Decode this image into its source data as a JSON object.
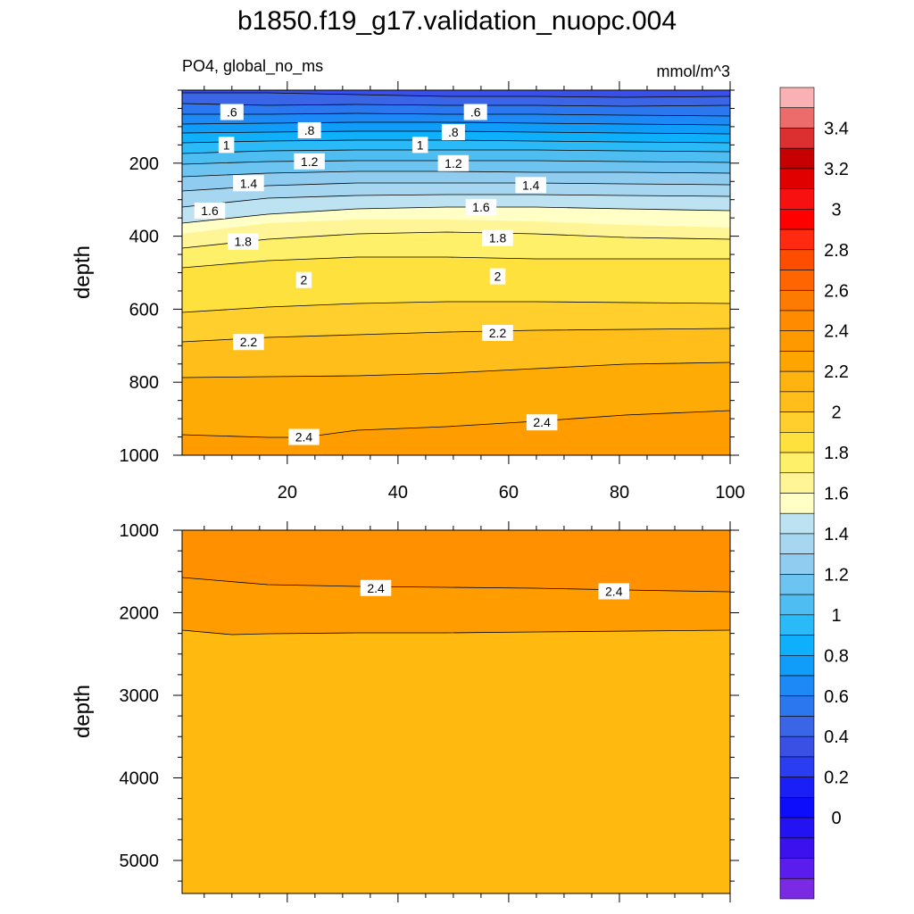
{
  "title": "b1850.f19_g17.validation_nuopc.004",
  "subtitle_left": "PO4, global_no_ms",
  "units": "mmol/m^3",
  "chart_data": [
    {
      "type": "contour",
      "panel": "upper",
      "xlabel": "",
      "ylabel": "depth",
      "xlim": [
        1,
        100
      ],
      "ylim": [
        0,
        1000
      ],
      "x_ticks": [
        20,
        40,
        60,
        80,
        100
      ],
      "y_ticks": [
        200,
        400,
        600,
        800,
        1000
      ],
      "contour_levels_labeled": [
        0.6,
        0.8,
        1.0,
        1.2,
        1.4,
        1.6,
        1.8,
        2.0,
        2.2,
        2.4
      ],
      "contour_labels": [
        {
          "x": 10,
          "y": 60,
          "text": ".6"
        },
        {
          "x": 54,
          "y": 60,
          "text": ".6"
        },
        {
          "x": 24,
          "y": 110,
          "text": ".8"
        },
        {
          "x": 50,
          "y": 115,
          "text": ".8"
        },
        {
          "x": 9,
          "y": 150,
          "text": "1"
        },
        {
          "x": 44,
          "y": 150,
          "text": "1"
        },
        {
          "x": 24,
          "y": 195,
          "text": "1.2"
        },
        {
          "x": 50,
          "y": 200,
          "text": "1.2"
        },
        {
          "x": 13,
          "y": 255,
          "text": "1.4"
        },
        {
          "x": 64,
          "y": 260,
          "text": "1.4"
        },
        {
          "x": 6,
          "y": 330,
          "text": "1.6"
        },
        {
          "x": 55,
          "y": 320,
          "text": "1.6"
        },
        {
          "x": 12,
          "y": 415,
          "text": "1.8"
        },
        {
          "x": 58,
          "y": 405,
          "text": "1.8"
        },
        {
          "x": 23,
          "y": 520,
          "text": "2"
        },
        {
          "x": 58,
          "y": 510,
          "text": "2"
        },
        {
          "x": 13,
          "y": 690,
          "text": "2.2"
        },
        {
          "x": 58,
          "y": 665,
          "text": "2.2"
        },
        {
          "x": 23,
          "y": 950,
          "text": "2.4"
        },
        {
          "x": 66,
          "y": 910,
          "text": "2.4"
        }
      ]
    },
    {
      "type": "contour",
      "panel": "lower",
      "xlabel": "",
      "ylabel": "depth",
      "xlim": [
        1,
        100
      ],
      "ylim": [
        1000,
        5400
      ],
      "y_ticks": [
        1000,
        2000,
        3000,
        4000,
        5000
      ],
      "contour_labels": [
        {
          "x": 36,
          "y": 1700,
          "text": "2.4"
        },
        {
          "x": 79,
          "y": 1740,
          "text": "2.4"
        }
      ]
    }
  ],
  "colorbar": {
    "labels": [
      "3.4",
      "3.2",
      "3",
      "2.8",
      "2.6",
      "2.4",
      "2.2",
      "2",
      "1.8",
      "1.6",
      "1.4",
      "1.2",
      "1",
      "0.8",
      "0.6",
      "0.4",
      "0.2",
      "0"
    ],
    "colors_top_to_bottom": [
      "#f9b1b4",
      "#ec6c6c",
      "#dc3030",
      "#c60000",
      "#e00000",
      "#f71010",
      "#ff0000",
      "#ff2a10",
      "#ff4d00",
      "#ff6500",
      "#ff7a00",
      "#ff8c00",
      "#ff9900",
      "#ffa500",
      "#ffb30e",
      "#ffbe1a",
      "#ffd02d",
      "#ffe13e",
      "#fff06a",
      "#fff596",
      "#ffffc6",
      "#bde3f3",
      "#a7d6f1",
      "#8fccef",
      "#6ec4f0",
      "#4ebdf2",
      "#2abaf8",
      "#0fb0fb",
      "#109cf9",
      "#1d89f6",
      "#2b77f0",
      "#3a65e6",
      "#3a4fe3",
      "#2a3df1",
      "#1a1ff6",
      "#0d0dfc",
      "#2313f2",
      "#3b11ee",
      "#5b1cee",
      "#7a2ae2"
    ]
  }
}
